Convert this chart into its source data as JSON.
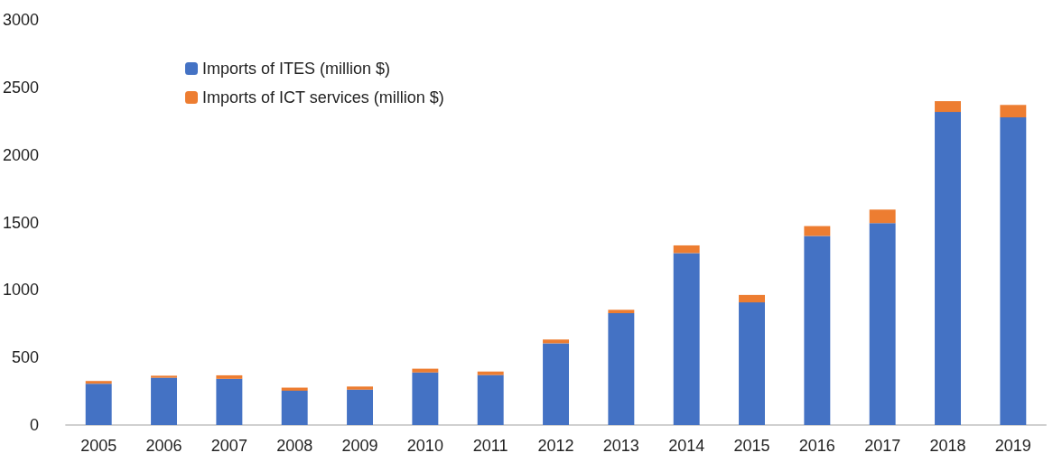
{
  "chart_data": {
    "type": "bar",
    "stacked": true,
    "categories": [
      "2005",
      "2006",
      "2007",
      "2008",
      "2009",
      "2010",
      "2011",
      "2012",
      "2013",
      "2014",
      "2015",
      "2016",
      "2017",
      "2018",
      "2019"
    ],
    "series": [
      {
        "name": "Imports of ITES (million $)",
        "color": "#4472c4",
        "values": [
          306,
          350,
          342,
          254,
          262,
          389,
          370,
          605,
          828,
          1273,
          908,
          1400,
          1495,
          2318,
          2278
        ]
      },
      {
        "name": "Imports of ICT services (million $)",
        "color": "#ed7d31",
        "values": [
          20,
          15,
          26,
          23,
          23,
          28,
          26,
          28,
          25,
          57,
          55,
          73,
          100,
          80,
          92
        ]
      }
    ],
    "ylim": [
      0,
      3000
    ],
    "yticks": [
      0,
      500,
      1000,
      1500,
      2000,
      2500,
      3000
    ],
    "grid": false,
    "legend": "top left"
  }
}
